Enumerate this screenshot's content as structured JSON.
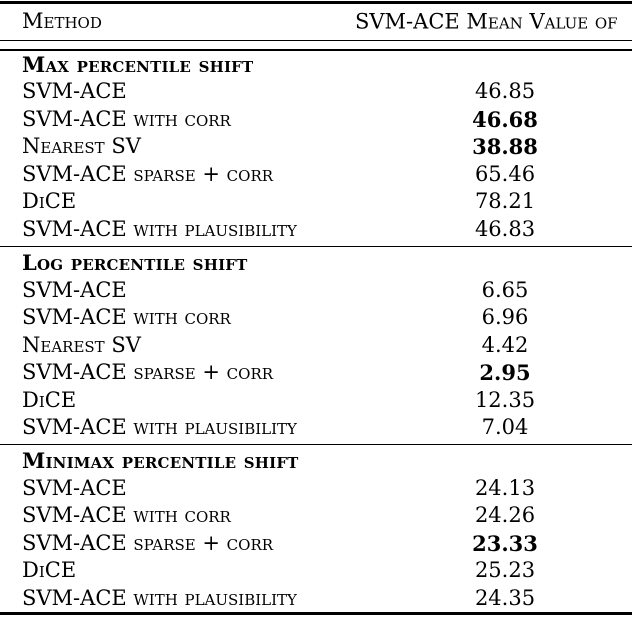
{
  "colors": {
    "text": "#000000",
    "background": "#ffffff",
    "rule": "#000000"
  },
  "table": {
    "header": {
      "method": "Method",
      "value_col": "SVM-ACE Mean Value of"
    },
    "sections": [
      {
        "title": "Max percentile shift",
        "rows": [
          {
            "method": "SVM-ACE",
            "value": "46.85",
            "bold": false
          },
          {
            "method": "SVM-ACE with corr",
            "value": "46.68",
            "bold": true
          },
          {
            "method": "Nearest SV",
            "value": "38.88",
            "bold": true
          },
          {
            "method": "SVM-ACE sparse + corr",
            "value": "65.46",
            "bold": false
          },
          {
            "method": "DiCE",
            "value": "78.21",
            "bold": false
          },
          {
            "method": "SVM-ACE with plausibility",
            "value": "46.83",
            "bold": false
          }
        ]
      },
      {
        "title": "Log percentile shift",
        "rows": [
          {
            "method": "SVM-ACE",
            "value": "6.65",
            "bold": false
          },
          {
            "method": "SVM-ACE with corr",
            "value": "6.96",
            "bold": false
          },
          {
            "method": "Nearest SV",
            "value": "4.42",
            "bold": false
          },
          {
            "method": "SVM-ACE sparse + corr",
            "value": "2.95",
            "bold": true
          },
          {
            "method": "DiCE",
            "value": "12.35",
            "bold": false
          },
          {
            "method": "SVM-ACE with plausibility",
            "value": "7.04",
            "bold": false
          }
        ]
      },
      {
        "title": "Minimax percentile shift",
        "rows": [
          {
            "method": "SVM-ACE",
            "value": "24.13",
            "bold": false
          },
          {
            "method": "SVM-ACE with corr",
            "value": "24.26",
            "bold": false
          },
          {
            "method": "SVM-ACE sparse + corr",
            "value": "23.33",
            "bold": true
          },
          {
            "method": "DiCE",
            "value": "25.23",
            "bold": false
          },
          {
            "method": "SVM-ACE with plausibility",
            "value": "24.35",
            "bold": false
          }
        ]
      }
    ]
  }
}
